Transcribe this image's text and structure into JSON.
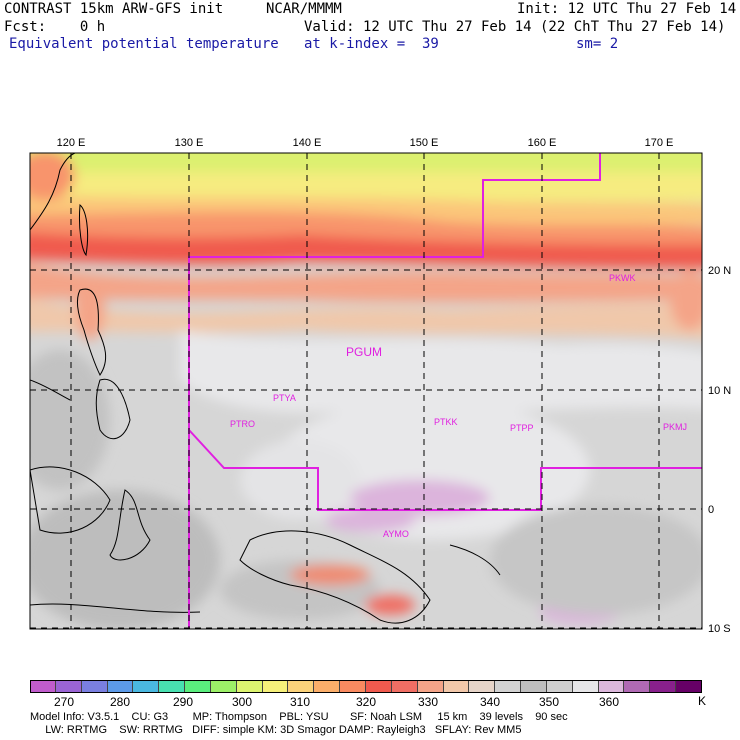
{
  "header": {
    "model_title": "CONTRAST 15km ARW-GFS init",
    "org": "NCAR/MMMM",
    "init": "Init: 12 UTC Thu 27 Feb 14",
    "fcst": "Fcst:    0 h",
    "valid": "Valid: 12 UTC Thu 27 Feb 14 (22 ChT Thu 27 Feb 14)",
    "field": "Equivalent potential temperature",
    "level": "at k-index =  39",
    "smooth": "sm= 2"
  },
  "map": {
    "lon_labels": [
      "120 E",
      "130 E",
      "140 E",
      "150 E",
      "160 E",
      "170 E"
    ],
    "lat_labels": [
      "20 N",
      "10 N",
      "0",
      "10 S"
    ],
    "stations": [
      "PKWK",
      "PGUM",
      "PTYA",
      "PTRO",
      "PTKK",
      "PTPP",
      "PKMJ",
      "AYMO"
    ]
  },
  "colorbar": {
    "colors": [
      "#c05ccc",
      "#9a64d4",
      "#7a7fe0",
      "#5c9ae8",
      "#4ab8e0",
      "#48e0b0",
      "#5aee7e",
      "#9cf068",
      "#ddf470",
      "#f6f07a",
      "#fbd27a",
      "#fbae6a",
      "#f98a60",
      "#f05a4e",
      "#f06e64",
      "#f4a488",
      "#f2c8aa",
      "#e6d4c8",
      "#d2d2d2",
      "#bebebe",
      "#cfcfcf",
      "#e6e6e8",
      "#dcb8dc",
      "#b06ab4",
      "#88208c",
      "#660066"
    ],
    "labels": [
      "270",
      "280",
      "290",
      "300",
      "310",
      "320",
      "330",
      "340",
      "350",
      "360"
    ],
    "unit": "K"
  },
  "footer": {
    "line1": "Model Info: V3.5.1    CU: G3        MP: Thompson    PBL: YSU       SF: Noah LSM     15 km    39 levels    90 sec",
    "line2": "     LW: RRTMG    SW: RRTMG   DIFF: simple KM: 3D Smagor DAMP: Rayleigh3   SFLAY: Rev MM5"
  }
}
